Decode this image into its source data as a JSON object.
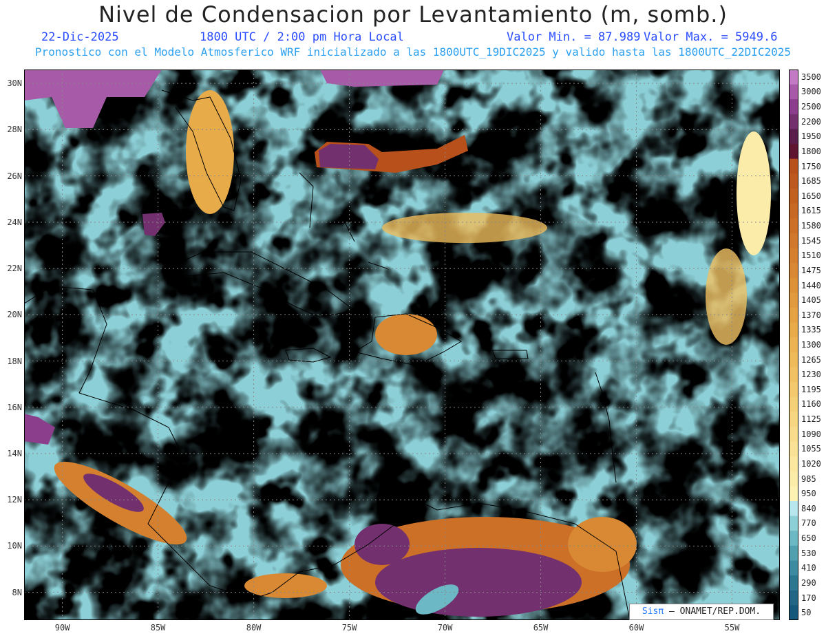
{
  "header": {
    "title": "Nivel de Condensacion por Levantamiento (m, somb.)",
    "date": "22-Dic-2025",
    "time": "1800 UTC / 2:00 pm Hora Local",
    "min_label": "Valor Min. = 87.989",
    "max_label": "Valor Max. = 5949.6",
    "subtitle": "Pronostico con el Modelo Atmosferico WRF inicializado a las 1800UTC_19DIC2025 y valido hasta las  1800UTC_22DIC2025"
  },
  "map": {
    "lat_labels": [
      "30N",
      "28N",
      "26N",
      "24N",
      "22N",
      "20N",
      "18N",
      "16N",
      "14N",
      "12N",
      "10N",
      "8N"
    ],
    "lon_labels": [
      "90W",
      "85W",
      "80W",
      "75W",
      "70W",
      "65W",
      "60W",
      "55W"
    ],
    "lat_values": [
      30,
      28,
      26,
      24,
      22,
      20,
      18,
      16,
      14,
      12,
      10,
      8
    ],
    "lon_values": [
      -90,
      -85,
      -80,
      -75,
      -70,
      -65,
      -60,
      -55
    ],
    "extent": {
      "lon_min": -92,
      "lon_max": -52.5,
      "lat_min": 6.8,
      "lat_max": 30.6
    }
  },
  "colorbar": {
    "levels": [
      "3500",
      "3000",
      "2500",
      "2200",
      "1950",
      "1800",
      "1750",
      "1685",
      "1650",
      "1615",
      "1580",
      "1545",
      "1510",
      "1475",
      "1440",
      "1405",
      "1370",
      "1335",
      "1300",
      "1265",
      "1230",
      "1195",
      "1160",
      "1125",
      "1090",
      "1055",
      "1020",
      "985",
      "950",
      "840",
      "770",
      "650",
      "530",
      "410",
      "290",
      "170",
      "50"
    ],
    "colors": [
      "#c27ac4",
      "#a75aa8",
      "#8a3e8c",
      "#73306f",
      "#5a1e4c",
      "#5e1630",
      "#b8501c",
      "#bd581e",
      "#c26020",
      "#c76824",
      "#cc7028",
      "#d0782b",
      "#d4802f",
      "#d98933",
      "#dd9238",
      "#e19a3d",
      "#e5a343",
      "#e8ab4a",
      "#ebb352",
      "#eebb5b",
      "#f0c264",
      "#f2c96d",
      "#f4d077",
      "#f6d681",
      "#f8dc8b",
      "#f9e295",
      "#fbe79f",
      "#fcecaa",
      "#fdf1b4",
      "#b8e6ee",
      "#8ccfd6",
      "#6cb8c4",
      "#529fb0",
      "#3e8aa0",
      "#2d7690",
      "#226585",
      "#16587a"
    ]
  },
  "credit": {
    "sis": "Sisπ",
    "text": " – ONAMET/REP.DOM."
  }
}
